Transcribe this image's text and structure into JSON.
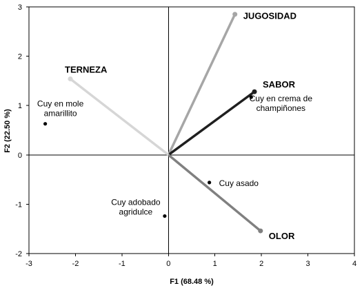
{
  "chart_data": {
    "type": "scatter",
    "subtype": "pca-biplot",
    "xlabel": "F1 (68.48 %)",
    "ylabel": "F2 (22.50 %)",
    "xlim": [
      -3,
      4
    ],
    "ylim": [
      -2,
      3
    ],
    "xticks": [
      -3,
      -2,
      -1,
      0,
      1,
      2,
      3,
      4
    ],
    "yticks": [
      -2,
      -1,
      0,
      1,
      2,
      3
    ],
    "grid": false,
    "vectors": [
      {
        "name": "JUGOSIDAD",
        "x": 1.43,
        "y": 2.85,
        "color": "#a6a6a6"
      },
      {
        "name": "SABOR",
        "x": 1.85,
        "y": 1.28,
        "color": "#1f1f1f"
      },
      {
        "name": "TERNEZA",
        "x": -2.11,
        "y": 1.54,
        "color": "#d6d6d6"
      },
      {
        "name": "OLOR",
        "x": 1.98,
        "y": -1.54,
        "color": "#808080"
      }
    ],
    "observations": [
      {
        "name": [
          "Cuy en mole",
          "amarillito"
        ],
        "x": -2.65,
        "y": 0.63
      },
      {
        "name": [
          "Cuy en crema de",
          "champiñones"
        ],
        "x": 1.78,
        "y": 1.17
      },
      {
        "name": [
          "Cuy asado"
        ],
        "x": 0.88,
        "y": -0.56
      },
      {
        "name": [
          "Cuy  adobado",
          "agridulce"
        ],
        "x": -0.08,
        "y": -1.24
      }
    ]
  }
}
